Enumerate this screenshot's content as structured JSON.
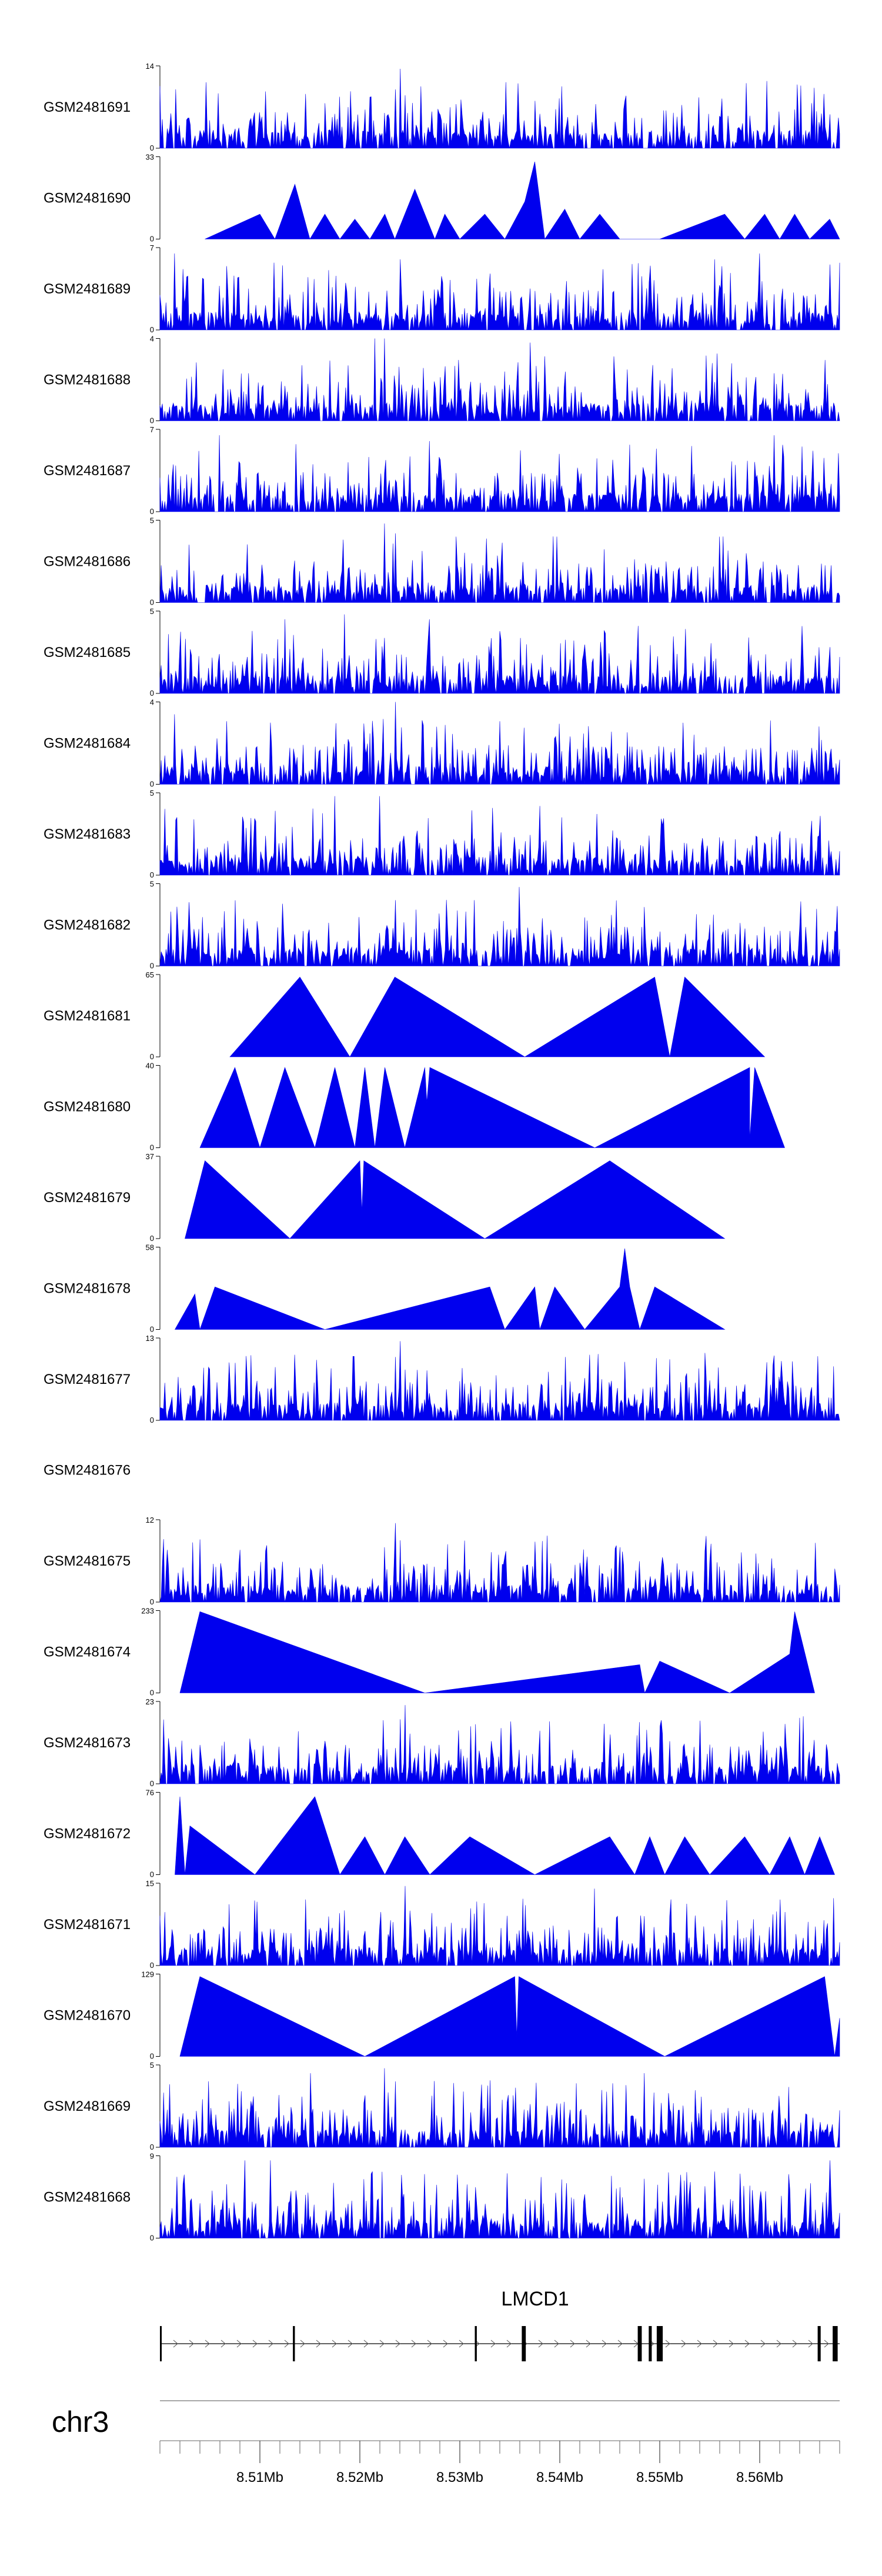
{
  "chart_data": {
    "type": "area",
    "title": "",
    "xlabel": "",
    "ylabel": "",
    "chromosome": "chr3",
    "gene": "LMCD1",
    "xlim_mb": [
      8.5,
      8.568
    ],
    "x_ticks": [
      {
        "value": 8.51,
        "label": "8.51Mb"
      },
      {
        "value": 8.52,
        "label": "8.52Mb"
      },
      {
        "value": 8.53,
        "label": "8.53Mb"
      },
      {
        "value": 8.54,
        "label": "8.54Mb"
      },
      {
        "value": 8.55,
        "label": "8.55Mb"
      },
      {
        "value": 8.56,
        "label": "8.56Mb"
      }
    ],
    "colors": {
      "fill": "#0000ee",
      "axis": "#000000",
      "gene": "#000000",
      "ideogram": "#888888"
    },
    "tracks": [
      {
        "name": "GSM2481691",
        "ymax": 14,
        "ymin_label": "0",
        "ymax_label": "14",
        "style": "dense",
        "seed": 11,
        "peaks": [
          [
            8.524,
            13.5
          ],
          [
            8.5235,
            10.0
          ],
          [
            8.5245,
            9.0
          ],
          [
            8.5225,
            6.0
          ],
          [
            8.5455,
            4.5
          ]
        ]
      },
      {
        "name": "GSM2481690",
        "ymax": 33,
        "ymin_label": "0",
        "ymax_label": "33",
        "style": "sparse",
        "seed": 12,
        "points": [
          [
            8.5045,
            0
          ],
          [
            8.51,
            10
          ],
          [
            8.5115,
            0
          ],
          [
            8.5135,
            22
          ],
          [
            8.515,
            0
          ],
          [
            8.5165,
            10
          ],
          [
            8.518,
            0
          ],
          [
            8.5195,
            8
          ],
          [
            8.521,
            0
          ],
          [
            8.5225,
            10
          ],
          [
            8.5235,
            0
          ],
          [
            8.5255,
            20
          ],
          [
            8.5275,
            0
          ],
          [
            8.5285,
            10
          ],
          [
            8.53,
            0
          ],
          [
            8.5325,
            10
          ],
          [
            8.5345,
            0
          ],
          [
            8.5365,
            15
          ],
          [
            8.5375,
            31
          ],
          [
            8.5385,
            0
          ],
          [
            8.5405,
            12
          ],
          [
            8.542,
            0
          ],
          [
            8.544,
            10
          ],
          [
            8.546,
            0
          ],
          [
            8.55,
            0
          ],
          [
            8.5565,
            10
          ],
          [
            8.5585,
            0
          ],
          [
            8.5605,
            10
          ],
          [
            8.562,
            0
          ],
          [
            8.5635,
            10
          ],
          [
            8.565,
            0
          ],
          [
            8.567,
            8
          ],
          [
            8.568,
            0
          ]
        ]
      },
      {
        "name": "GSM2481689",
        "ymax": 7,
        "ymin_label": "0",
        "ymax_label": "7",
        "style": "dense",
        "seed": 13,
        "peaks": [
          [
            8.5015,
            6.5
          ],
          [
            8.524,
            6.0
          ],
          [
            8.5555,
            6.0
          ],
          [
            8.56,
            6.5
          ]
        ]
      },
      {
        "name": "GSM2481688",
        "ymax": 4,
        "ymin_label": "0",
        "ymax_label": "4",
        "style": "dense",
        "seed": 14,
        "peaks": [
          [
            8.5215,
            4.0
          ],
          [
            8.5225,
            4.0
          ],
          [
            8.537,
            3.8
          ]
        ]
      },
      {
        "name": "GSM2481687",
        "ymax": 7,
        "ymin_label": "0",
        "ymax_label": "7",
        "style": "dense",
        "seed": 15,
        "peaks": [
          [
            8.506,
            6.5
          ],
          [
            8.5615,
            6.5
          ],
          [
            8.527,
            6.0
          ]
        ]
      },
      {
        "name": "GSM2481686",
        "ymax": 5,
        "ymin_label": "0",
        "ymax_label": "5",
        "style": "dense",
        "seed": 16,
        "peaks": [
          [
            8.5225,
            4.8
          ],
          [
            8.5235,
            4.2
          ],
          [
            8.556,
            4.0
          ]
        ]
      },
      {
        "name": "GSM2481685",
        "ymax": 5,
        "ymin_label": "0",
        "ymax_label": "5",
        "style": "dense",
        "seed": 17,
        "peaks": [
          [
            8.5185,
            4.8
          ],
          [
            8.5125,
            4.5
          ],
          [
            8.527,
            4.5
          ]
        ]
      },
      {
        "name": "GSM2481684",
        "ymax": 4,
        "ymin_label": "0",
        "ymax_label": "4",
        "style": "dense",
        "seed": 18,
        "peaks": [
          [
            8.5235,
            4.0
          ],
          [
            8.5015,
            3.4
          ]
        ]
      },
      {
        "name": "GSM2481683",
        "ymax": 5,
        "ymin_label": "0",
        "ymax_label": "5",
        "style": "dense",
        "seed": 19,
        "peaks": [
          [
            8.5175,
            4.8
          ],
          [
            8.522,
            4.8
          ],
          [
            8.538,
            4.2
          ]
        ]
      },
      {
        "name": "GSM2481682",
        "ymax": 5,
        "ymin_label": "0",
        "ymax_label": "5",
        "style": "dense",
        "seed": 20,
        "peaks": [
          [
            8.536,
            4.8
          ],
          [
            8.5315,
            4.0
          ],
          [
            8.5235,
            4.0
          ]
        ]
      },
      {
        "name": "GSM2481681",
        "ymax": 65,
        "ymin_label": "0",
        "ymax_label": "65",
        "style": "sparse",
        "seed": 21,
        "points": [
          [
            8.507,
            0
          ],
          [
            8.514,
            63
          ],
          [
            8.519,
            0
          ],
          [
            8.5235,
            63
          ],
          [
            8.5365,
            0
          ],
          [
            8.5495,
            63
          ],
          [
            8.551,
            0
          ],
          [
            8.5525,
            63
          ],
          [
            8.5605,
            0
          ]
        ]
      },
      {
        "name": "GSM2481680",
        "ymax": 40,
        "ymin_label": "0",
        "ymax_label": "40",
        "style": "sparse",
        "seed": 22,
        "points": [
          [
            8.504,
            0
          ],
          [
            8.5075,
            39
          ],
          [
            8.51,
            0
          ],
          [
            8.5125,
            39
          ],
          [
            8.5155,
            0
          ],
          [
            8.5175,
            39
          ],
          [
            8.5195,
            0
          ],
          [
            8.5205,
            39
          ],
          [
            8.5215,
            0
          ],
          [
            8.5225,
            39
          ],
          [
            8.5245,
            0
          ],
          [
            8.5265,
            39
          ],
          [
            8.5267,
            22
          ],
          [
            8.527,
            39
          ],
          [
            8.5435,
            0
          ],
          [
            8.559,
            39
          ],
          [
            8.559,
            4
          ],
          [
            8.5595,
            39
          ],
          [
            8.5625,
            0
          ]
        ]
      },
      {
        "name": "GSM2481679",
        "ymax": 37,
        "ymin_label": "0",
        "ymax_label": "37",
        "style": "sparse",
        "seed": 23,
        "points": [
          [
            8.5025,
            0
          ],
          [
            8.5045,
            35
          ],
          [
            8.513,
            0
          ],
          [
            8.52,
            35
          ],
          [
            8.5202,
            12
          ],
          [
            8.5204,
            35
          ],
          [
            8.5325,
            0
          ],
          [
            8.545,
            35
          ],
          [
            8.5565,
            0
          ]
        ]
      },
      {
        "name": "GSM2481678",
        "ymax": 58,
        "ymin_label": "0",
        "ymax_label": "58",
        "style": "sparse",
        "seed": 24,
        "points": [
          [
            8.5015,
            0
          ],
          [
            8.5035,
            25
          ],
          [
            8.504,
            0
          ],
          [
            8.5055,
            30
          ],
          [
            8.5165,
            0
          ],
          [
            8.533,
            30
          ],
          [
            8.5345,
            0
          ],
          [
            8.5375,
            30
          ],
          [
            8.538,
            0
          ],
          [
            8.5395,
            30
          ],
          [
            8.5425,
            0
          ],
          [
            8.546,
            30
          ],
          [
            8.5465,
            57
          ],
          [
            8.547,
            30
          ],
          [
            8.548,
            0
          ],
          [
            8.5495,
            30
          ],
          [
            8.5565,
            0
          ]
        ]
      },
      {
        "name": "GSM2481677",
        "ymax": 13,
        "ymin_label": "0",
        "ymax_label": "13",
        "style": "dense",
        "seed": 25,
        "peaks": [
          [
            8.524,
            12.5
          ],
          [
            8.5235,
            10.0
          ],
          [
            8.5245,
            8.0
          ],
          [
            8.525,
            6.0
          ],
          [
            8.5405,
            10.0
          ],
          [
            8.541,
            6.0
          ]
        ]
      },
      {
        "name": "GSM2481676",
        "ymax": null,
        "ymin_label": "",
        "ymax_label": "",
        "style": "empty",
        "seed": 26
      },
      {
        "name": "GSM2481675",
        "ymax": 12,
        "ymin_label": "0",
        "ymax_label": "12",
        "style": "dense",
        "seed": 27,
        "peaks": [
          [
            8.5235,
            11.5
          ],
          [
            8.524,
            9.0
          ],
          [
            8.5225,
            8.0
          ],
          [
            8.546,
            8.0
          ]
        ]
      },
      {
        "name": "GSM2481674",
        "ymax": 233,
        "ymin_label": "0",
        "ymax_label": "233",
        "style": "sparse",
        "seed": 28,
        "points": [
          [
            8.502,
            0
          ],
          [
            8.504,
            230
          ],
          [
            8.5265,
            0
          ],
          [
            8.548,
            80
          ],
          [
            8.5485,
            0
          ],
          [
            8.55,
            90
          ],
          [
            8.557,
            0
          ],
          [
            8.563,
            110
          ],
          [
            8.5635,
            230
          ],
          [
            8.5655,
            0
          ]
        ]
      },
      {
        "name": "GSM2481673",
        "ymax": 23,
        "ymin_label": "0",
        "ymax_label": "23",
        "style": "dense",
        "seed": 29,
        "peaks": [
          [
            8.5245,
            22.0
          ],
          [
            8.524,
            18.0
          ],
          [
            8.525,
            14.0
          ],
          [
            8.5235,
            10.0
          ],
          [
            8.5165,
            12.0
          ],
          [
            8.519,
            10.0
          ]
        ]
      },
      {
        "name": "GSM2481672",
        "ymax": 76,
        "ymin_label": "0",
        "ymax_label": "76",
        "style": "sparse",
        "seed": 30,
        "points": [
          [
            8.5015,
            0
          ],
          [
            8.502,
            72
          ],
          [
            8.5025,
            0
          ],
          [
            8.503,
            45
          ],
          [
            8.5095,
            0
          ],
          [
            8.5155,
            72
          ],
          [
            8.518,
            0
          ],
          [
            8.5205,
            35
          ],
          [
            8.5225,
            0
          ],
          [
            8.5245,
            35
          ],
          [
            8.527,
            0
          ],
          [
            8.531,
            35
          ],
          [
            8.5375,
            0
          ],
          [
            8.545,
            35
          ],
          [
            8.5475,
            0
          ],
          [
            8.549,
            35
          ],
          [
            8.5505,
            0
          ],
          [
            8.5525,
            35
          ],
          [
            8.555,
            0
          ],
          [
            8.5585,
            35
          ],
          [
            8.561,
            0
          ],
          [
            8.563,
            35
          ],
          [
            8.5645,
            0
          ],
          [
            8.566,
            35
          ],
          [
            8.5675,
            0
          ]
        ]
      },
      {
        "name": "GSM2481671",
        "ymax": 15,
        "ymin_label": "0",
        "ymax_label": "15",
        "style": "dense",
        "seed": 31,
        "peaks": [
          [
            8.5245,
            14.5
          ],
          [
            8.525,
            10.0
          ],
          [
            8.5435,
            14.0
          ],
          [
            8.5485,
            9.0
          ]
        ]
      },
      {
        "name": "GSM2481670",
        "ymax": 129,
        "ymin_label": "0",
        "ymax_label": "129",
        "style": "sparse",
        "seed": 32,
        "points": [
          [
            8.502,
            0
          ],
          [
            8.504,
            125
          ],
          [
            8.5205,
            0
          ],
          [
            8.5355,
            125
          ],
          [
            8.5357,
            30
          ],
          [
            8.5359,
            125
          ],
          [
            8.5505,
            0
          ],
          [
            8.5665,
            125
          ],
          [
            8.5675,
            0
          ],
          [
            8.568,
            60
          ]
        ]
      },
      {
        "name": "GSM2481669",
        "ymax": 5,
        "ymin_label": "0",
        "ymax_label": "5",
        "style": "dense",
        "seed": 33,
        "peaks": [
          [
            8.5225,
            4.8
          ],
          [
            8.515,
            4.5
          ],
          [
            8.5485,
            4.5
          ]
        ]
      },
      {
        "name": "GSM2481668",
        "ymax": 9,
        "ymin_label": "0",
        "ymax_label": "9",
        "style": "dense",
        "seed": 34,
        "peaks": [
          [
            8.5085,
            8.5
          ],
          [
            8.511,
            8.5
          ],
          [
            8.567,
            8.5
          ],
          [
            8.5265,
            7.0
          ]
        ]
      }
    ],
    "gene_model": {
      "name": "LMCD1",
      "strand": "+",
      "start_mb": 8.5,
      "end_mb": 8.568,
      "exons_mb": [
        [
          8.5,
          8.5001
        ],
        [
          8.5133,
          8.5135
        ],
        [
          8.5315,
          8.5317
        ],
        [
          8.5362,
          8.5366
        ],
        [
          8.5478,
          8.5482
        ],
        [
          8.5489,
          8.5492
        ],
        [
          8.5497,
          8.5503
        ],
        [
          8.5658,
          8.5661
        ],
        [
          8.5673,
          8.5678
        ]
      ]
    }
  }
}
